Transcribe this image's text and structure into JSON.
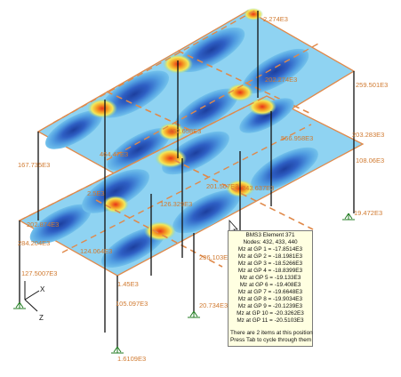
{
  "colors": {
    "slab_outline": "#e0894a",
    "column": "#111111",
    "label": "#d07a30",
    "contour_light": "#6fc6ee",
    "contour_mid": "#2e76d0",
    "contour_dark": "#1d3f9e",
    "contour_hot": "#f0401c"
  },
  "member_labels": [
    "2.274E3",
    "259.501E3",
    "202.274E3",
    "462.658E3",
    "566.958E3",
    "203.283E3",
    "167.735E3",
    "464.47E3",
    "108.06E3",
    "201.507E3",
    "126.329E3",
    "243.637E3",
    "19.472E3",
    "2.5E3",
    "202.874E3",
    "284.204E3",
    "124.064E3",
    "236.103E3",
    "1.45E3",
    "20.734E3",
    "105.097E3",
    "1.6109E3",
    "127.5007E3"
  ],
  "axes": {
    "x": "X",
    "z": "Z"
  },
  "tooltip": {
    "title": "BMS3 Element 371",
    "nodes": "Nodes: 432, 433, 440",
    "gp_lines": [
      "Mz at GP 1 = -17.8514E3",
      "Mz at GP 2 = -18.1981E3",
      "Mz at GP 3 = -18.5266E3",
      "Mz at GP 4 = -18.8399E3",
      "Mz at GP 5 = -19.133E3",
      "Mz at GP 6 = -19.408E3",
      "Mz at GP 7 = -19.6648E3",
      "Mz at GP 8 = -19.9034E3",
      "Mz at GP 9 = -20.1239E3",
      "Mz at GP 10 = -20.3262E3",
      "Mz at GP 11 = -20.5103E3"
    ],
    "footer_1": "There are 2 items at this position",
    "footer_2": "Press Tab to cycle through them"
  }
}
